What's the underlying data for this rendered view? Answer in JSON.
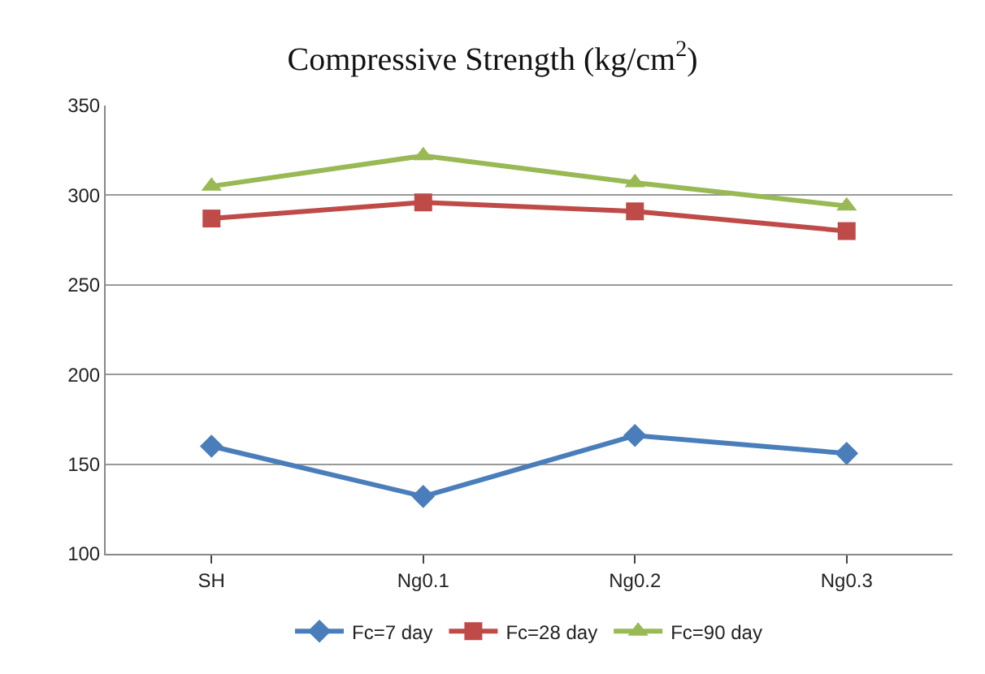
{
  "chart_data": {
    "type": "line",
    "title": "Compressive Strength (kg/cm$^{2}$)",
    "categories": [
      "SH",
      "Ng0.1",
      "Ng0.2",
      "Ng0.3"
    ],
    "series": [
      {
        "name": "Fc=7 day",
        "color": "#4a7ebb",
        "marker": "diamond",
        "values": [
          160,
          132,
          166,
          156
        ]
      },
      {
        "name": "Fc=28 day",
        "color": "#be4b48",
        "marker": "square",
        "values": [
          287,
          296,
          291,
          280
        ]
      },
      {
        "name": "Fc=90 day",
        "color": "#98b954",
        "marker": "triangle",
        "values": [
          305,
          322,
          307,
          294
        ]
      }
    ],
    "ylim": [
      100,
      350
    ],
    "yticks": [
      100,
      150,
      200,
      250,
      300,
      350
    ],
    "grid": "y",
    "legend": "bottom"
  }
}
